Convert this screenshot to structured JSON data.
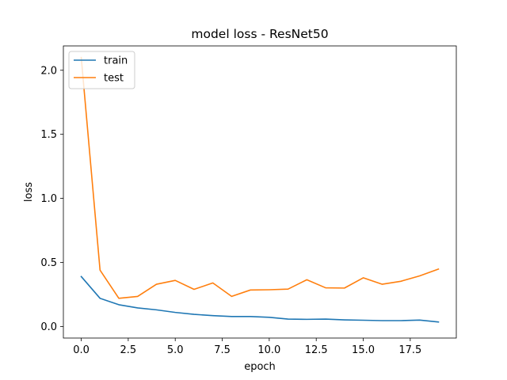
{
  "chart_data": {
    "type": "line",
    "title": "model loss - ResNet50",
    "xlabel": "epoch",
    "ylabel": "loss",
    "xlim": [
      -0.95,
      19.95
    ],
    "ylim": [
      -0.09,
      2.19
    ],
    "xticks": [
      0.0,
      2.5,
      5.0,
      7.5,
      10.0,
      12.5,
      15.0,
      17.5
    ],
    "xtick_labels": [
      "0.0",
      "2.5",
      "5.0",
      "7.5",
      "10.0",
      "12.5",
      "15.0",
      "17.5"
    ],
    "yticks": [
      0.0,
      0.5,
      1.0,
      1.5,
      2.0
    ],
    "ytick_labels": [
      "0.0",
      "0.5",
      "1.0",
      "1.5",
      "2.0"
    ],
    "grid": false,
    "legend_position": "top-left",
    "x": [
      0,
      1,
      2,
      3,
      4,
      5,
      6,
      7,
      8,
      9,
      10,
      11,
      12,
      13,
      14,
      15,
      16,
      17,
      18,
      19
    ],
    "series": [
      {
        "name": "train",
        "color": "#1f77b4",
        "values": [
          0.39,
          0.22,
          0.17,
          0.145,
          0.13,
          0.11,
          0.095,
          0.085,
          0.078,
          0.078,
          0.072,
          0.058,
          0.056,
          0.058,
          0.052,
          0.049,
          0.046,
          0.046,
          0.05,
          0.035
        ]
      },
      {
        "name": "test",
        "color": "#ff7f0e",
        "values": [
          2.1,
          0.44,
          0.22,
          0.235,
          0.33,
          0.36,
          0.29,
          0.34,
          0.235,
          0.285,
          0.287,
          0.292,
          0.365,
          0.302,
          0.3,
          0.38,
          0.33,
          0.353,
          0.395,
          0.448
        ]
      }
    ]
  }
}
